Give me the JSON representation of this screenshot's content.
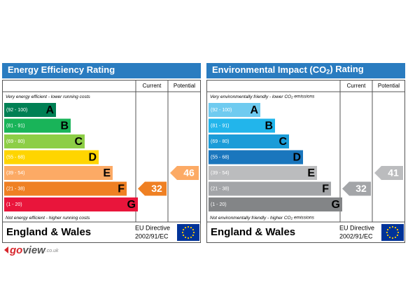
{
  "panels": [
    {
      "title": [
        "Energy Efficiency Rating"
      ],
      "columns": [
        "Current",
        "Potential"
      ],
      "top_note": [
        "Very energy efficient - lower running costs"
      ],
      "bottom_note": [
        "Not energy efficient - higher running costs"
      ],
      "bands": [
        {
          "range": "(92 - 100)",
          "letter": "A",
          "color": "#008054"
        },
        {
          "range": "(81 - 91)",
          "letter": "B",
          "color": "#19b459"
        },
        {
          "range": "(69 - 80)",
          "letter": "C",
          "color": "#8dce46"
        },
        {
          "range": "(55 - 68)",
          "letter": "D",
          "color": "#ffd500"
        },
        {
          "range": "(39 - 54)",
          "letter": "E",
          "color": "#fcaa65"
        },
        {
          "range": "(21 - 38)",
          "letter": "F",
          "color": "#ef8023"
        },
        {
          "range": "(1 - 20)",
          "letter": "G",
          "color": "#e9153b"
        }
      ],
      "current": 32,
      "potential": 46,
      "region": "England & Wales",
      "directive": [
        "EU Directive",
        "2002/91/EC"
      ]
    },
    {
      "title": [
        "Environmental Impact (CO",
        "2",
        ") Rating"
      ],
      "columns": [
        "Current",
        "Potential"
      ],
      "top_note": [
        "Very environmentally friendly - lower CO",
        "2",
        " emissions"
      ],
      "bottom_note": [
        "Not environmentally friendly - higher CO",
        "2",
        " emissions"
      ],
      "bands": [
        {
          "range": "(92 - 100)",
          "letter": "A",
          "color": "#6fcbf0"
        },
        {
          "range": "(81 - 91)",
          "letter": "B",
          "color": "#22b5eb"
        },
        {
          "range": "(69 - 80)",
          "letter": "C",
          "color": "#1b9cd8"
        },
        {
          "range": "(55 - 68)",
          "letter": "D",
          "color": "#1a76bd"
        },
        {
          "range": "(39 - 54)",
          "letter": "E",
          "color": "#bbbcbe"
        },
        {
          "range": "(21 - 38)",
          "letter": "F",
          "color": "#a3a5a8"
        },
        {
          "range": "(1 - 20)",
          "letter": "G",
          "color": "#838587"
        }
      ],
      "current": 32,
      "potential": 41,
      "region": "England & Wales",
      "directive": [
        "EU Directive",
        "2002/91/EC"
      ]
    }
  ],
  "logo": [
    "go",
    "view",
    ".co.uk"
  ]
}
